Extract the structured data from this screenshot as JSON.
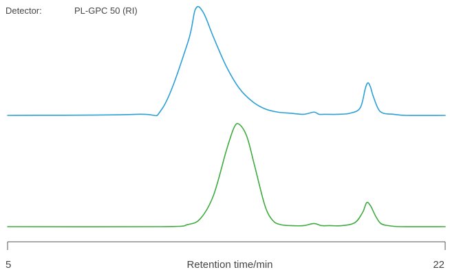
{
  "detector": {
    "label": "Detector:",
    "value": "PL-GPC 50 (RI)"
  },
  "chart_data": {
    "type": "line",
    "title": "",
    "xlabel": "Retention time/min",
    "ylabel": "",
    "xlim": [
      5,
      22
    ],
    "x_tick_labels": [
      "5",
      "22"
    ],
    "grid": false,
    "legend": "none",
    "series": [
      {
        "color": "#2a9fd6",
        "x": [
          5.0,
          10.0,
          11.0,
          12.0,
          12.3,
          12.6,
          13.0,
          13.5,
          14.0,
          14.5,
          15.0,
          15.5,
          16.0,
          16.5,
          16.9,
          17.1,
          17.3,
          17.8,
          18.3,
          18.7,
          18.9,
          19.0,
          19.1,
          19.2,
          19.4,
          19.6,
          20.0,
          20.5,
          22.0
        ],
        "y": [
          0.0,
          0.01,
          0.06,
          0.67,
          0.98,
          0.95,
          0.72,
          0.45,
          0.25,
          0.13,
          0.06,
          0.03,
          0.02,
          0.01,
          0.03,
          0.01,
          0.01,
          0.01,
          0.02,
          0.07,
          0.25,
          0.3,
          0.26,
          0.18,
          0.06,
          0.02,
          0.01,
          0.0,
          0.0
        ]
      },
      {
        "color": "#3daa3d",
        "x": [
          5.0,
          11.0,
          12.0,
          12.5,
          13.0,
          13.5,
          13.8,
          14.0,
          14.3,
          14.6,
          15.0,
          15.3,
          15.6,
          16.0,
          16.5,
          16.9,
          17.2,
          17.5,
          18.0,
          18.5,
          18.8,
          18.95,
          19.1,
          19.3,
          19.5,
          19.8,
          20.3,
          22.0
        ],
        "y": [
          0.0,
          0.0,
          0.02,
          0.08,
          0.3,
          0.73,
          0.95,
          0.98,
          0.86,
          0.58,
          0.2,
          0.06,
          0.02,
          0.01,
          0.01,
          0.03,
          0.01,
          0.01,
          0.01,
          0.04,
          0.14,
          0.23,
          0.2,
          0.1,
          0.03,
          0.01,
          0.0,
          0.0
        ]
      }
    ]
  }
}
